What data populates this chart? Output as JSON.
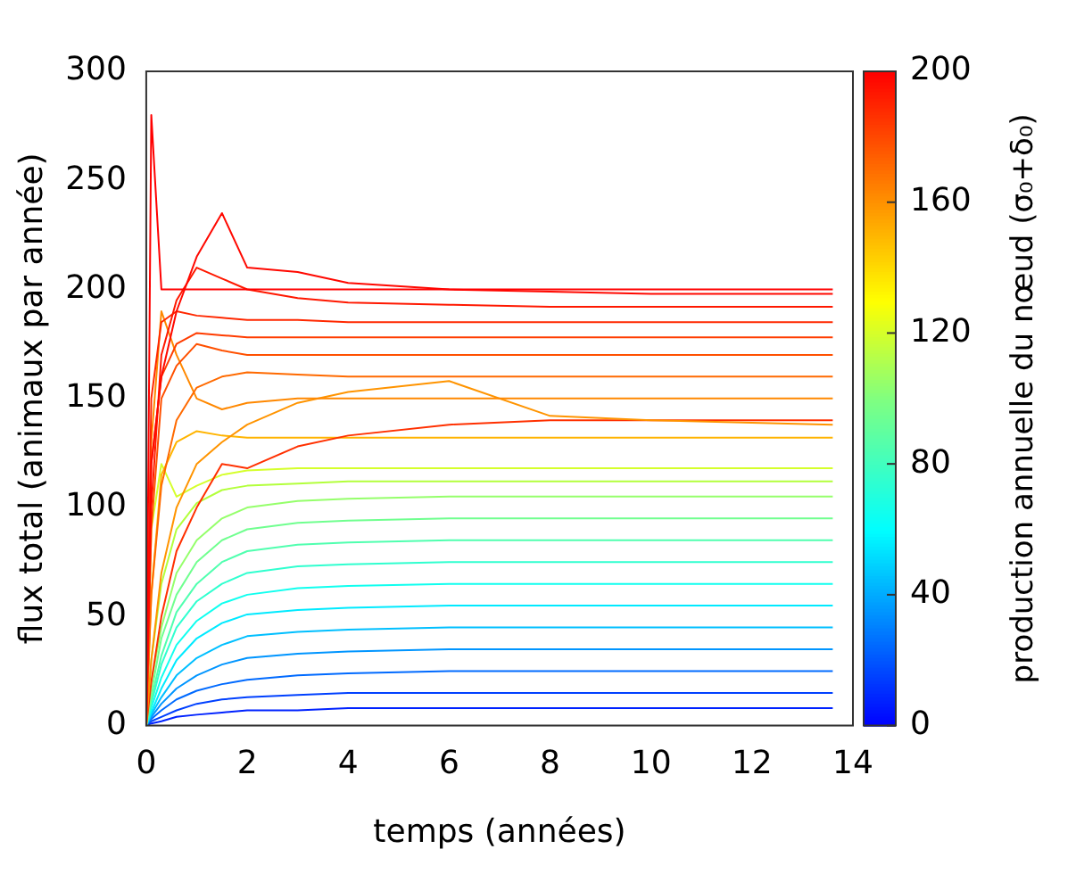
{
  "chart_data": {
    "type": "line",
    "xlabel": "temps (années)",
    "ylabel": "flux total (animaux par année)",
    "clabel": "production annuelle du nœud (σ₀+δ₀)",
    "x": [
      0,
      0.1,
      0.3,
      0.6,
      1,
      1.5,
      2,
      3,
      4,
      6,
      8,
      10,
      13.6
    ],
    "xlim": [
      0,
      14
    ],
    "xticks": [
      0,
      2,
      4,
      6,
      8,
      10,
      12,
      14
    ],
    "ylim": [
      0,
      300
    ],
    "yticks": [
      0,
      50,
      100,
      150,
      200,
      250,
      300
    ],
    "clim": [
      0,
      200
    ],
    "cticks": [
      0,
      40,
      80,
      120,
      160,
      200
    ],
    "grid": false,
    "legend": false,
    "marker": "none",
    "line_style": "solid",
    "series": [
      {
        "color": "#ff0000",
        "values": [
          0,
          280,
          200,
          200,
          200,
          200,
          200,
          200,
          200,
          200,
          200,
          200,
          200
        ]
      },
      {
        "color": "#ff0800",
        "values": [
          0,
          120,
          160,
          190,
          215,
          235,
          210,
          208,
          203,
          200,
          199,
          198,
          198
        ]
      },
      {
        "color": "#ff1800",
        "values": [
          0,
          100,
          170,
          195,
          210,
          205,
          200,
          196,
          194,
          193,
          192,
          192,
          192
        ]
      },
      {
        "color": "#ff2800",
        "values": [
          0,
          150,
          185,
          190,
          188,
          187,
          186,
          186,
          185,
          185,
          185,
          185,
          185
        ]
      },
      {
        "color": "#ff3c00",
        "values": [
          0,
          120,
          160,
          175,
          180,
          179,
          178,
          178,
          178,
          178,
          178,
          178,
          178
        ]
      },
      {
        "color": "#ff5000",
        "values": [
          0,
          90,
          150,
          165,
          175,
          172,
          170,
          170,
          170,
          170,
          170,
          170,
          170
        ]
      },
      {
        "color": "#ff6a00",
        "values": [
          0,
          60,
          110,
          140,
          155,
          160,
          162,
          161,
          160,
          160,
          160,
          160,
          160
        ]
      },
      {
        "color": "#ff8800",
        "values": [
          0,
          130,
          190,
          170,
          150,
          145,
          148,
          150,
          150,
          150,
          150,
          150,
          150
        ]
      },
      {
        "color": "#ff9400",
        "values": [
          0,
          30,
          70,
          100,
          120,
          130,
          138,
          148,
          153,
          158,
          142,
          140,
          138
        ]
      },
      {
        "color": "#ff3000",
        "values": [
          0,
          20,
          50,
          80,
          100,
          120,
          118,
          128,
          133,
          138,
          140,
          140,
          140
        ]
      },
      {
        "color": "#ffb400",
        "values": [
          0,
          60,
          115,
          130,
          135,
          133,
          132,
          132,
          132,
          132,
          132,
          132,
          132
        ]
      },
      {
        "color": "#d5ff2b",
        "values": [
          0,
          90,
          120,
          105,
          110,
          115,
          117,
          118,
          118,
          118,
          118,
          118,
          118
        ]
      },
      {
        "color": "#b3ff3c",
        "values": [
          0,
          30,
          65,
          90,
          102,
          108,
          110,
          111,
          112,
          112,
          112,
          112,
          112
        ]
      },
      {
        "color": "#95ff6b",
        "values": [
          0,
          20,
          45,
          70,
          85,
          95,
          100,
          103,
          104,
          105,
          105,
          105,
          105
        ]
      },
      {
        "color": "#70ff8f",
        "values": [
          0,
          15,
          40,
          60,
          75,
          85,
          90,
          93,
          94,
          95,
          95,
          95,
          95
        ]
      },
      {
        "color": "#50ffaf",
        "values": [
          0,
          12,
          32,
          52,
          65,
          75,
          80,
          83,
          84,
          85,
          85,
          85,
          85
        ]
      },
      {
        "color": "#30ffcf",
        "values": [
          0,
          10,
          28,
          45,
          57,
          65,
          70,
          73,
          74,
          75,
          75,
          75,
          75
        ]
      },
      {
        "color": "#10ffef",
        "values": [
          0,
          8,
          22,
          37,
          48,
          56,
          60,
          63,
          64,
          65,
          65,
          65,
          65
        ]
      },
      {
        "color": "#00eaff",
        "values": [
          0,
          6,
          17,
          30,
          40,
          47,
          51,
          53,
          54,
          55,
          55,
          55,
          55
        ]
      },
      {
        "color": "#00bfff",
        "values": [
          0,
          5,
          13,
          23,
          31,
          37,
          41,
          43,
          44,
          45,
          45,
          45,
          45
        ]
      },
      {
        "color": "#0095ff",
        "values": [
          0,
          4,
          10,
          17,
          23,
          28,
          31,
          33,
          34,
          35,
          35,
          35,
          35
        ]
      },
      {
        "color": "#006aff",
        "values": [
          0,
          3,
          7,
          12,
          16,
          19,
          21,
          23,
          24,
          25,
          25,
          25,
          25
        ]
      },
      {
        "color": "#0040ff",
        "values": [
          0,
          2,
          4,
          7,
          10,
          12,
          13,
          14,
          15,
          15,
          15,
          15,
          15
        ]
      },
      {
        "color": "#0022ff",
        "values": [
          0,
          1,
          2,
          4,
          5,
          6,
          7,
          7,
          8,
          8,
          8,
          8,
          8
        ]
      }
    ]
  }
}
